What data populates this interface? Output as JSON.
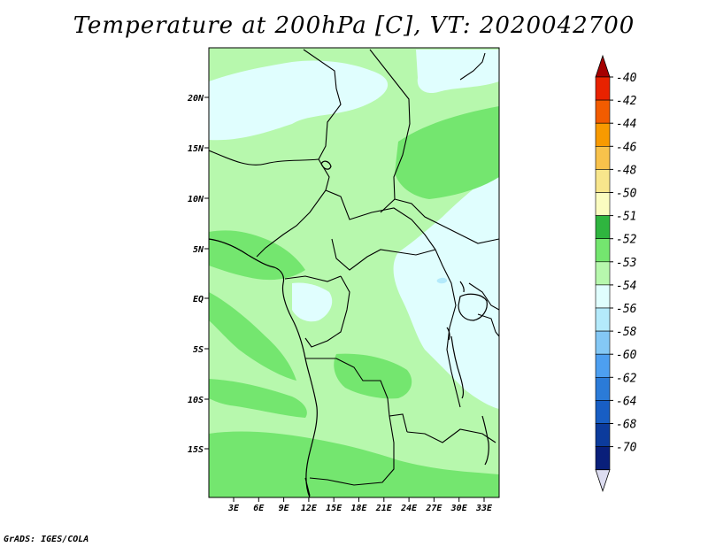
{
  "title": "Temperature at 200hPa [C], VT: 2020042700",
  "credit": "GrADS: IGES/COLA",
  "map": {
    "lat_labels": [
      "20N",
      "15N",
      "10N",
      "5N",
      "EQ",
      "5S",
      "10S",
      "15S"
    ],
    "lon_labels": [
      "3E",
      "6E",
      "9E",
      "12E",
      "15E",
      "18E",
      "21E",
      "24E",
      "27E",
      "30E",
      "33E"
    ]
  },
  "colorbar": {
    "labels": [
      "-40",
      "-42",
      "-44",
      "-46",
      "-48",
      "-50",
      "-51",
      "-52",
      "-53",
      "-54",
      "-56",
      "-58",
      "-60",
      "-62",
      "-64",
      "-68",
      "-70"
    ],
    "colors": [
      "#a50000",
      "#e82200",
      "#f25c00",
      "#f89a00",
      "#f8c24b",
      "#f8e68c",
      "#fbfcc0",
      "#2fb53f",
      "#74e66f",
      "#b7f8ad",
      "#e0fefe",
      "#b4eafb",
      "#84c8f5",
      "#4d9ff0",
      "#2b7bd8",
      "#185ec4",
      "#0c3b9c",
      "#091f7a",
      "#dcdcf0"
    ]
  },
  "colors": {
    "map_base": "#b7f8ad",
    "cold_patch": "#e0fefe",
    "warm_patch": "#74e66f",
    "coldest_spot": "#b4eafb"
  }
}
